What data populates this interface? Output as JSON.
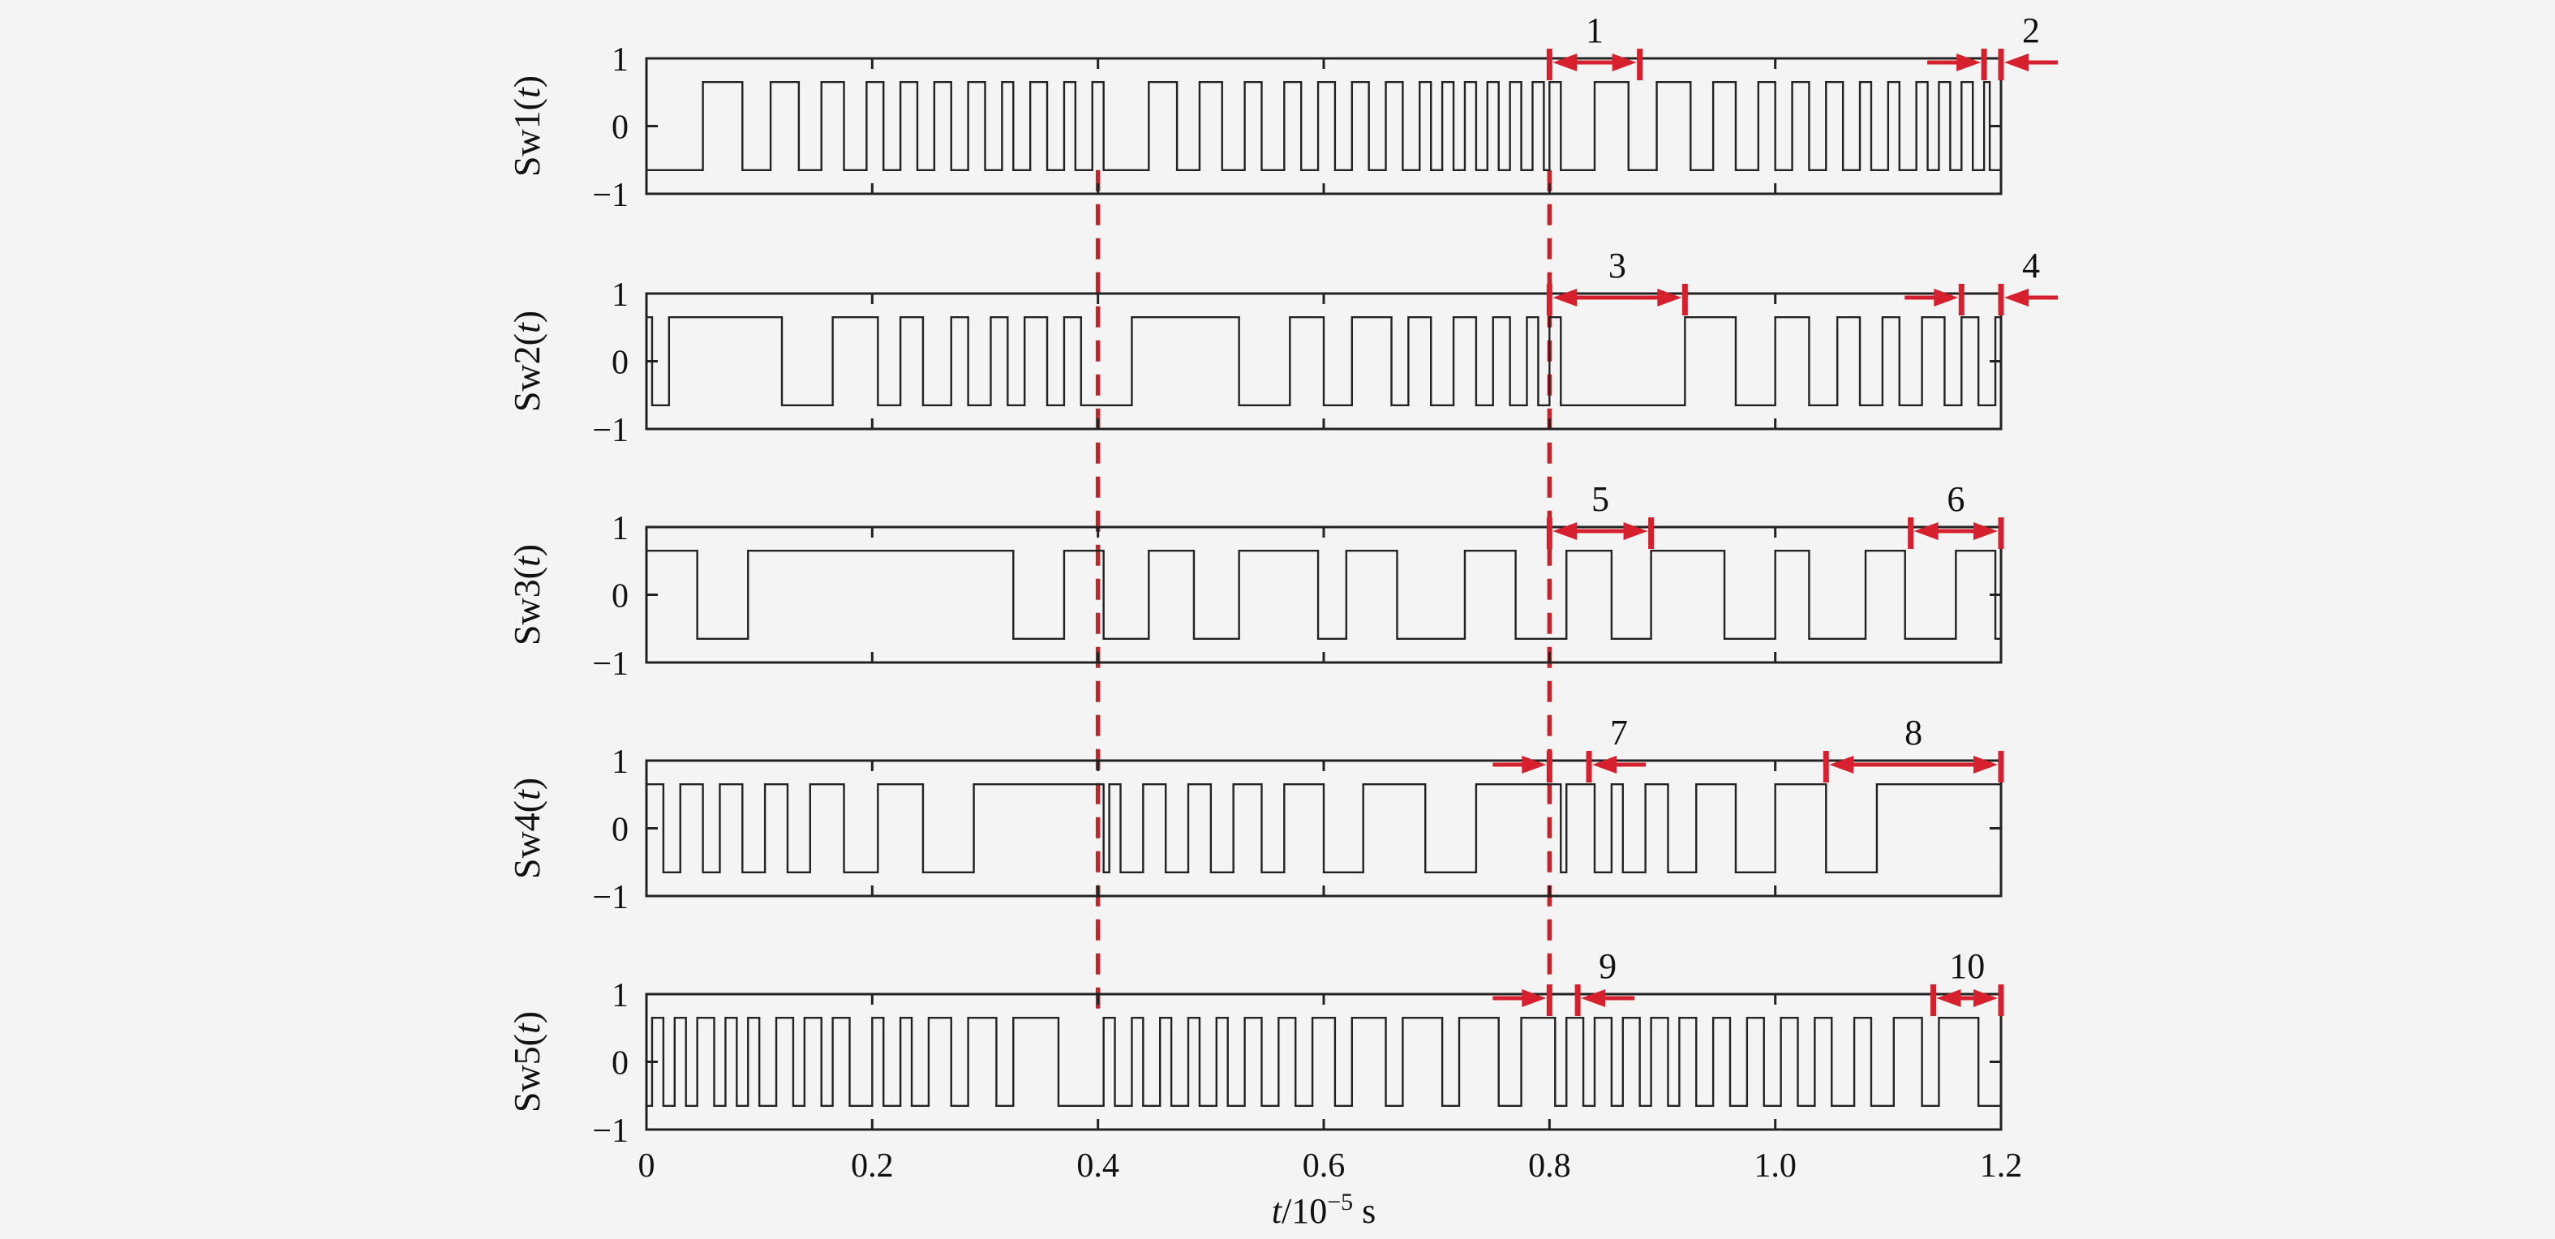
{
  "chart_data": {
    "type": "line",
    "xlabel": "t/10⁻⁵ s",
    "x_ticks": [
      0,
      0.2,
      0.4,
      0.6,
      0.8,
      1.0,
      1.2
    ],
    "x_tick_labels": [
      "0",
      "0.2",
      "0.4",
      "0.6",
      "0.8",
      "1.0",
      "1.2"
    ],
    "xlim": [
      0,
      1.2
    ],
    "y_ticks": [
      1,
      0,
      -1
    ],
    "y_tick_labels": [
      "1",
      "0",
      "−1"
    ],
    "ylim": [
      -1,
      1
    ],
    "signal_level": 0.65,
    "grid": false,
    "legend": "none",
    "sync_lines_x": [
      0.4,
      0.8
    ],
    "colors": {
      "signal": "#222222",
      "annotation": "#d6202e",
      "sync_line": "#c0272d"
    },
    "panels": [
      {
        "ylabel": "Sw1(t)",
        "start": -1,
        "switch_times": [
          0.05,
          0.085,
          0.11,
          0.135,
          0.155,
          0.175,
          0.195,
          0.21,
          0.225,
          0.24,
          0.255,
          0.27,
          0.285,
          0.3,
          0.315,
          0.325,
          0.34,
          0.355,
          0.37,
          0.38,
          0.395,
          0.405,
          0.445,
          0.47,
          0.49,
          0.51,
          0.53,
          0.545,
          0.565,
          0.58,
          0.595,
          0.61,
          0.625,
          0.64,
          0.655,
          0.67,
          0.685,
          0.695,
          0.705,
          0.715,
          0.725,
          0.735,
          0.745,
          0.755,
          0.765,
          0.775,
          0.785,
          0.795,
          0.8,
          0.81,
          0.84,
          0.87,
          0.895,
          0.925,
          0.945,
          0.965,
          0.985,
          1.0,
          1.015,
          1.03,
          1.045,
          1.06,
          1.075,
          1.085,
          1.1,
          1.11,
          1.125,
          1.135,
          1.145,
          1.155,
          1.165,
          1.175,
          1.185,
          1.19
        ],
        "annotations": [
          {
            "label": "1",
            "x_from": 0.8,
            "x_to": 0.88,
            "style": "inward"
          },
          {
            "label": "2",
            "x_from": 1.185,
            "x_to": 1.2,
            "style": "outward"
          }
        ]
      },
      {
        "ylabel": "Sw2(t)",
        "start": 1,
        "switch_times": [
          0.005,
          0.02,
          0.12,
          0.165,
          0.205,
          0.225,
          0.245,
          0.27,
          0.285,
          0.305,
          0.32,
          0.335,
          0.355,
          0.37,
          0.385,
          0.43,
          0.525,
          0.57,
          0.6,
          0.625,
          0.66,
          0.675,
          0.695,
          0.715,
          0.735,
          0.75,
          0.765,
          0.78,
          0.79,
          0.8,
          0.81,
          0.92,
          0.965,
          1.0,
          1.03,
          1.055,
          1.075,
          1.095,
          1.11,
          1.13,
          1.15,
          1.165,
          1.18,
          1.195
        ],
        "annotations": [
          {
            "label": "3",
            "x_from": 0.8,
            "x_to": 0.92,
            "style": "inward"
          },
          {
            "label": "4",
            "x_from": 1.165,
            "x_to": 1.2,
            "style": "outward"
          }
        ]
      },
      {
        "ylabel": "Sw3(t)",
        "start": 1,
        "switch_times": [
          0.045,
          0.09,
          0.325,
          0.37,
          0.405,
          0.445,
          0.485,
          0.525,
          0.595,
          0.62,
          0.665,
          0.725,
          0.77,
          0.815,
          0.855,
          0.89,
          0.955,
          1.0,
          1.03,
          1.08,
          1.115,
          1.16,
          1.195
        ],
        "annotations": [
          {
            "label": "5",
            "x_from": 0.8,
            "x_to": 0.89,
            "style": "inward"
          },
          {
            "label": "6",
            "x_from": 1.12,
            "x_to": 1.2,
            "style": "inward"
          }
        ]
      },
      {
        "ylabel": "Sw4(t)",
        "start": 1,
        "switch_times": [
          0.015,
          0.03,
          0.05,
          0.065,
          0.085,
          0.105,
          0.125,
          0.145,
          0.175,
          0.205,
          0.245,
          0.29,
          0.405,
          0.41,
          0.42,
          0.44,
          0.46,
          0.48,
          0.5,
          0.52,
          0.545,
          0.565,
          0.6,
          0.635,
          0.69,
          0.735,
          0.81,
          0.815,
          0.84,
          0.855,
          0.865,
          0.885,
          0.905,
          0.93,
          0.965,
          1.0,
          1.045,
          1.09,
          1.2
        ],
        "annotations": [
          {
            "label": "7",
            "x_from": 0.8,
            "x_to": 0.835,
            "style": "outward"
          },
          {
            "label": "8",
            "x_from": 1.045,
            "x_to": 1.2,
            "style": "inward"
          }
        ]
      },
      {
        "ylabel": "Sw5(t)",
        "start": -1,
        "switch_times": [
          0.005,
          0.015,
          0.025,
          0.035,
          0.045,
          0.06,
          0.07,
          0.08,
          0.09,
          0.1,
          0.115,
          0.13,
          0.14,
          0.155,
          0.165,
          0.18,
          0.2,
          0.21,
          0.225,
          0.235,
          0.25,
          0.27,
          0.285,
          0.31,
          0.325,
          0.365,
          0.405,
          0.415,
          0.43,
          0.44,
          0.455,
          0.465,
          0.48,
          0.49,
          0.505,
          0.515,
          0.53,
          0.545,
          0.56,
          0.575,
          0.59,
          0.61,
          0.625,
          0.655,
          0.67,
          0.705,
          0.72,
          0.755,
          0.775,
          0.805,
          0.815,
          0.83,
          0.84,
          0.855,
          0.865,
          0.88,
          0.89,
          0.905,
          0.915,
          0.93,
          0.945,
          0.96,
          0.975,
          0.99,
          1.005,
          1.02,
          1.035,
          1.05,
          1.07,
          1.085,
          1.105,
          1.13,
          1.145,
          1.18
        ],
        "annotations": [
          {
            "label": "9",
            "x_from": 0.8,
            "x_to": 0.825,
            "style": "outward"
          },
          {
            "label": "10",
            "x_from": 1.14,
            "x_to": 1.2,
            "style": "inward"
          }
        ]
      }
    ]
  }
}
